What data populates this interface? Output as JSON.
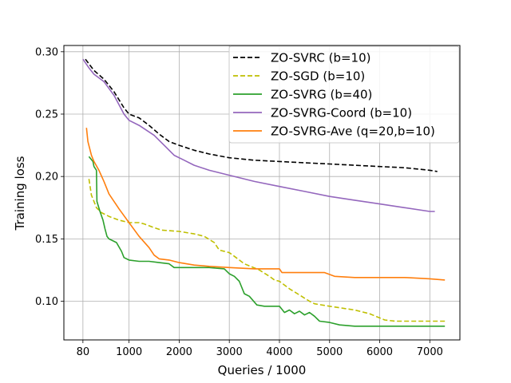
{
  "chart_data": {
    "type": "line",
    "title": "",
    "xlabel": "Queries / 1000",
    "ylabel": "Training loss",
    "xlim": [
      -300,
      7600
    ],
    "ylim": [
      0.069,
      0.305
    ],
    "xticks": [
      {
        "value": 80,
        "label": "80"
      },
      {
        "value": 1000,
        "label": "1000"
      },
      {
        "value": 2000,
        "label": "2000"
      },
      {
        "value": 3000,
        "label": "3000"
      },
      {
        "value": 4000,
        "label": "4000"
      },
      {
        "value": 5000,
        "label": "5000"
      },
      {
        "value": 6000,
        "label": "6000"
      },
      {
        "value": 7000,
        "label": "7000"
      }
    ],
    "yticks": [
      {
        "value": 0.1,
        "label": "0.10"
      },
      {
        "value": 0.15,
        "label": "0.15"
      },
      {
        "value": 0.2,
        "label": "0.20"
      },
      {
        "value": 0.25,
        "label": "0.25"
      },
      {
        "value": 0.3,
        "label": "0.30"
      }
    ],
    "grid": true,
    "legend_position": "top-right",
    "series": [
      {
        "name": "ZO-SVRC (b=10)",
        "color": "#000000",
        "dash": "dashed",
        "points": [
          [
            130,
            0.294
          ],
          [
            300,
            0.285
          ],
          [
            500,
            0.278
          ],
          [
            700,
            0.268
          ],
          [
            900,
            0.255
          ],
          [
            1000,
            0.25
          ],
          [
            1200,
            0.247
          ],
          [
            1400,
            0.241
          ],
          [
            1600,
            0.234
          ],
          [
            1800,
            0.228
          ],
          [
            2000,
            0.225
          ],
          [
            2300,
            0.221
          ],
          [
            2600,
            0.218
          ],
          [
            3000,
            0.215
          ],
          [
            3500,
            0.213
          ],
          [
            4000,
            0.212
          ],
          [
            4500,
            0.211
          ],
          [
            5000,
            0.21
          ],
          [
            5500,
            0.209
          ],
          [
            6000,
            0.208
          ],
          [
            6500,
            0.207
          ],
          [
            7000,
            0.205
          ],
          [
            7150,
            0.204
          ]
        ]
      },
      {
        "name": "ZO-SGD (b=10)",
        "color": "#bfbf00",
        "dash": "dashed",
        "points": [
          [
            200,
            0.198
          ],
          [
            250,
            0.185
          ],
          [
            300,
            0.18
          ],
          [
            350,
            0.175
          ],
          [
            450,
            0.171
          ],
          [
            600,
            0.168
          ],
          [
            800,
            0.165
          ],
          [
            1000,
            0.163
          ],
          [
            1200,
            0.163
          ],
          [
            1300,
            0.162
          ],
          [
            1500,
            0.159
          ],
          [
            1650,
            0.157
          ],
          [
            2000,
            0.156
          ],
          [
            2300,
            0.154
          ],
          [
            2500,
            0.152
          ],
          [
            2700,
            0.147
          ],
          [
            2800,
            0.141
          ],
          [
            3000,
            0.139
          ],
          [
            3100,
            0.136
          ],
          [
            3300,
            0.13
          ],
          [
            3600,
            0.125
          ],
          [
            3800,
            0.12
          ],
          [
            3900,
            0.117
          ],
          [
            4000,
            0.116
          ],
          [
            4200,
            0.11
          ],
          [
            4400,
            0.105
          ],
          [
            4600,
            0.1
          ],
          [
            4700,
            0.098
          ],
          [
            5000,
            0.096
          ],
          [
            5500,
            0.093
          ],
          [
            5800,
            0.09
          ],
          [
            6100,
            0.085
          ],
          [
            6300,
            0.084
          ],
          [
            6600,
            0.084
          ],
          [
            7000,
            0.084
          ],
          [
            7300,
            0.084
          ]
        ]
      },
      {
        "name": "ZO-SVRG (b=40)",
        "color": "#2ca02c",
        "dash": "solid",
        "points": [
          [
            200,
            0.216
          ],
          [
            280,
            0.212
          ],
          [
            300,
            0.208
          ],
          [
            350,
            0.205
          ],
          [
            360,
            0.18
          ],
          [
            420,
            0.172
          ],
          [
            480,
            0.165
          ],
          [
            520,
            0.158
          ],
          [
            560,
            0.152
          ],
          [
            600,
            0.15
          ],
          [
            650,
            0.149
          ],
          [
            750,
            0.147
          ],
          [
            850,
            0.14
          ],
          [
            900,
            0.135
          ],
          [
            1000,
            0.133
          ],
          [
            1200,
            0.132
          ],
          [
            1400,
            0.132
          ],
          [
            1600,
            0.131
          ],
          [
            1800,
            0.13
          ],
          [
            1900,
            0.127
          ],
          [
            2200,
            0.127
          ],
          [
            2600,
            0.127
          ],
          [
            2900,
            0.126
          ],
          [
            3000,
            0.122
          ],
          [
            3100,
            0.12
          ],
          [
            3200,
            0.116
          ],
          [
            3300,
            0.106
          ],
          [
            3400,
            0.104
          ],
          [
            3550,
            0.097
          ],
          [
            3700,
            0.096
          ],
          [
            3900,
            0.096
          ],
          [
            4000,
            0.096
          ],
          [
            4100,
            0.091
          ],
          [
            4200,
            0.093
          ],
          [
            4300,
            0.09
          ],
          [
            4400,
            0.092
          ],
          [
            4500,
            0.089
          ],
          [
            4600,
            0.091
          ],
          [
            4700,
            0.088
          ],
          [
            4800,
            0.084
          ],
          [
            5000,
            0.083
          ],
          [
            5200,
            0.081
          ],
          [
            5500,
            0.08
          ],
          [
            6000,
            0.08
          ],
          [
            6500,
            0.08
          ],
          [
            7000,
            0.08
          ],
          [
            7300,
            0.08
          ]
        ]
      },
      {
        "name": "ZO-SVRG-Coord (b=10)",
        "color": "#9467bd",
        "dash": "solid",
        "points": [
          [
            80,
            0.294
          ],
          [
            200,
            0.287
          ],
          [
            300,
            0.282
          ],
          [
            500,
            0.276
          ],
          [
            700,
            0.265
          ],
          [
            900,
            0.25
          ],
          [
            1000,
            0.245
          ],
          [
            1200,
            0.241
          ],
          [
            1500,
            0.233
          ],
          [
            1700,
            0.225
          ],
          [
            1900,
            0.217
          ],
          [
            2100,
            0.213
          ],
          [
            2300,
            0.209
          ],
          [
            2600,
            0.205
          ],
          [
            3000,
            0.201
          ],
          [
            3500,
            0.196
          ],
          [
            4000,
            0.192
          ],
          [
            4500,
            0.188
          ],
          [
            5000,
            0.184
          ],
          [
            5500,
            0.181
          ],
          [
            6000,
            0.178
          ],
          [
            6500,
            0.175
          ],
          [
            7000,
            0.172
          ],
          [
            7100,
            0.172
          ]
        ]
      },
      {
        "name": "ZO-SVRG-Ave (q=20,b=10)",
        "color": "#ff7f0e",
        "dash": "solid",
        "points": [
          [
            150,
            0.239
          ],
          [
            180,
            0.228
          ],
          [
            250,
            0.217
          ],
          [
            300,
            0.212
          ],
          [
            400,
            0.205
          ],
          [
            500,
            0.196
          ],
          [
            600,
            0.186
          ],
          [
            700,
            0.18
          ],
          [
            800,
            0.174
          ],
          [
            1000,
            0.163
          ],
          [
            1200,
            0.152
          ],
          [
            1400,
            0.143
          ],
          [
            1500,
            0.137
          ],
          [
            1600,
            0.134
          ],
          [
            1800,
            0.133
          ],
          [
            2000,
            0.131
          ],
          [
            2300,
            0.129
          ],
          [
            2600,
            0.128
          ],
          [
            3000,
            0.127
          ],
          [
            3500,
            0.126
          ],
          [
            4000,
            0.126
          ],
          [
            4050,
            0.123
          ],
          [
            4500,
            0.123
          ],
          [
            4900,
            0.123
          ],
          [
            5100,
            0.12
          ],
          [
            5500,
            0.119
          ],
          [
            6000,
            0.119
          ],
          [
            6500,
            0.119
          ],
          [
            7000,
            0.118
          ],
          [
            7300,
            0.117
          ]
        ]
      }
    ]
  }
}
